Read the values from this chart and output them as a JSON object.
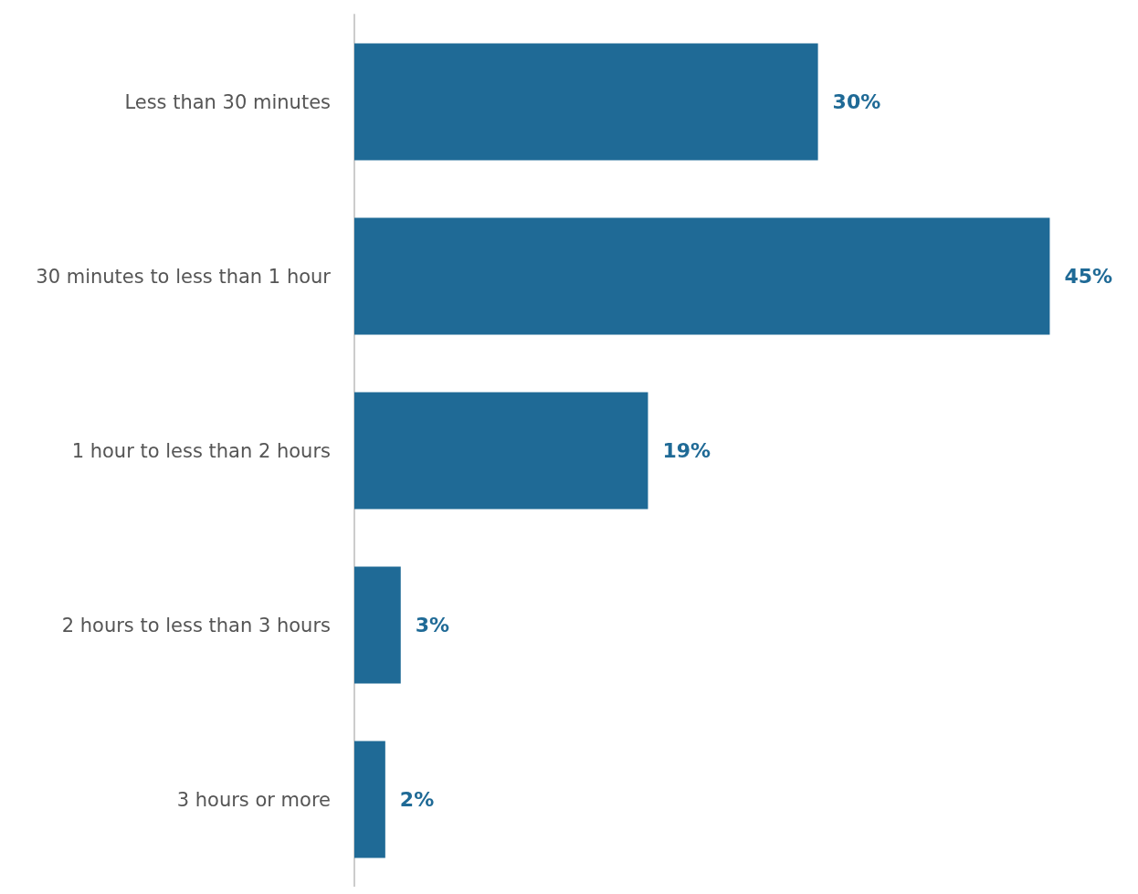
{
  "chart_data": {
    "type": "bar",
    "orientation": "horizontal",
    "categories": [
      "Less than 30 minutes",
      "30 minutes to less than 1 hour",
      "1 hour to less than 2 hours",
      "2 hours to less than 3 hours",
      "3 hours or more"
    ],
    "values": [
      30,
      45,
      19,
      3,
      2
    ],
    "value_labels": [
      "30%",
      "45%",
      "19%",
      "3%",
      "2%"
    ],
    "color": "#1f6a96",
    "grid": false
  }
}
